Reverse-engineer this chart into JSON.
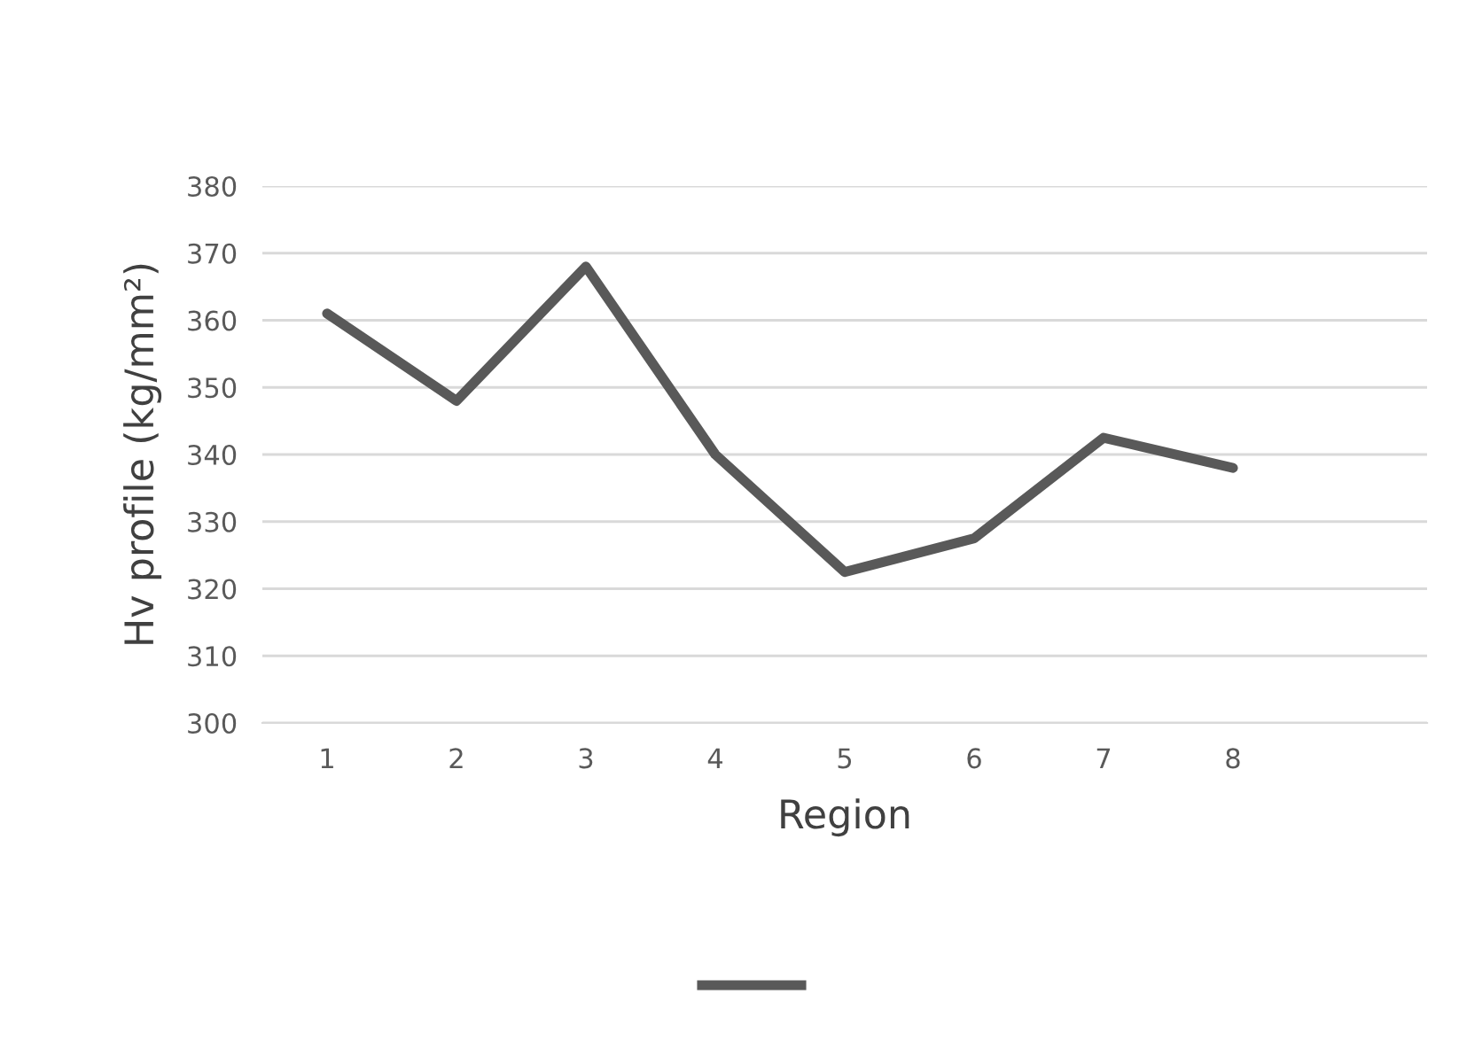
{
  "chart_data": {
    "type": "line",
    "xlabel": "Region",
    "ylabel": "Hv profile (kg/mm²)",
    "categories": [
      "1",
      "2",
      "3",
      "4",
      "5",
      "6",
      "7",
      "8",
      null
    ],
    "series": [
      {
        "color": "#595959",
        "values": [
          361,
          348,
          368,
          340,
          322.5,
          327.5,
          342.5,
          338,
          null
        ]
      }
    ],
    "ylim": [
      300,
      380
    ],
    "yticks": [
      300,
      310,
      320,
      330,
      340,
      350,
      360,
      370,
      380
    ],
    "grid": "y",
    "marker": "none",
    "line_style": "solid"
  }
}
